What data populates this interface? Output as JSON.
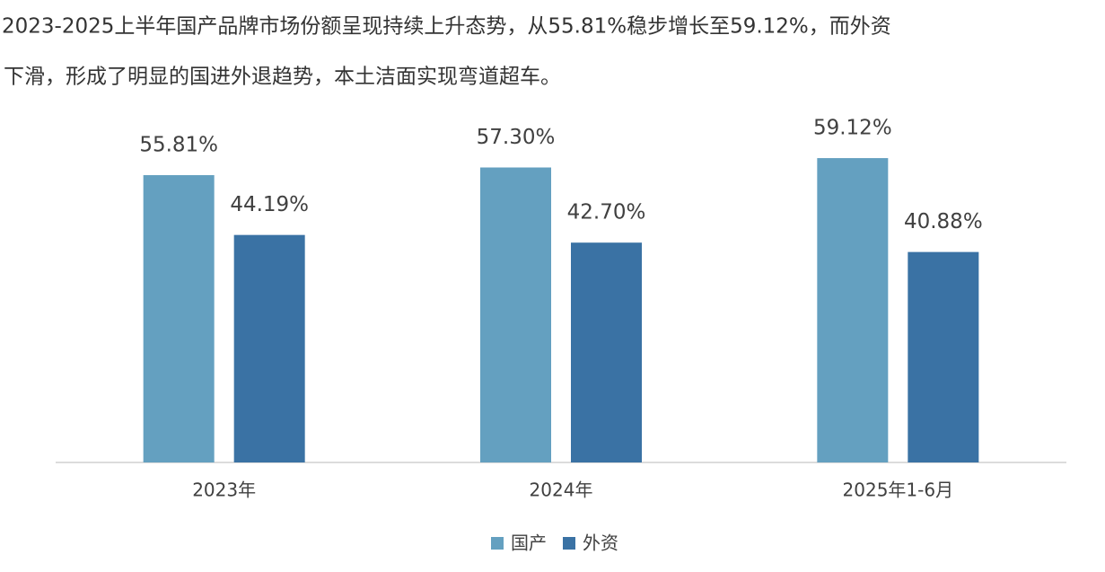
{
  "chart_data": {
    "type": "bar",
    "text": [
      "2023-2025上半年国产品牌市场份额呈现持续上升态势，从55.81%稳步增长至59.12%，而外资",
      "下滑，形成了明显的国进外退趋势，本土洁面实现弯道超车。"
    ],
    "categories": [
      "2023年",
      "2024年",
      "2025年1-6月"
    ],
    "series": [
      {
        "name": "国产",
        "color": "#64a0c0",
        "values": [
          55.81,
          57.3,
          59.12
        ],
        "value_labels": [
          "55.81%",
          "57.30%",
          "59.12%"
        ]
      },
      {
        "name": "外资",
        "color": "#3a72a4",
        "values": [
          44.19,
          42.7,
          40.88
        ],
        "value_labels": [
          "44.19%",
          "42.70%",
          "40.88%"
        ]
      }
    ]
  }
}
